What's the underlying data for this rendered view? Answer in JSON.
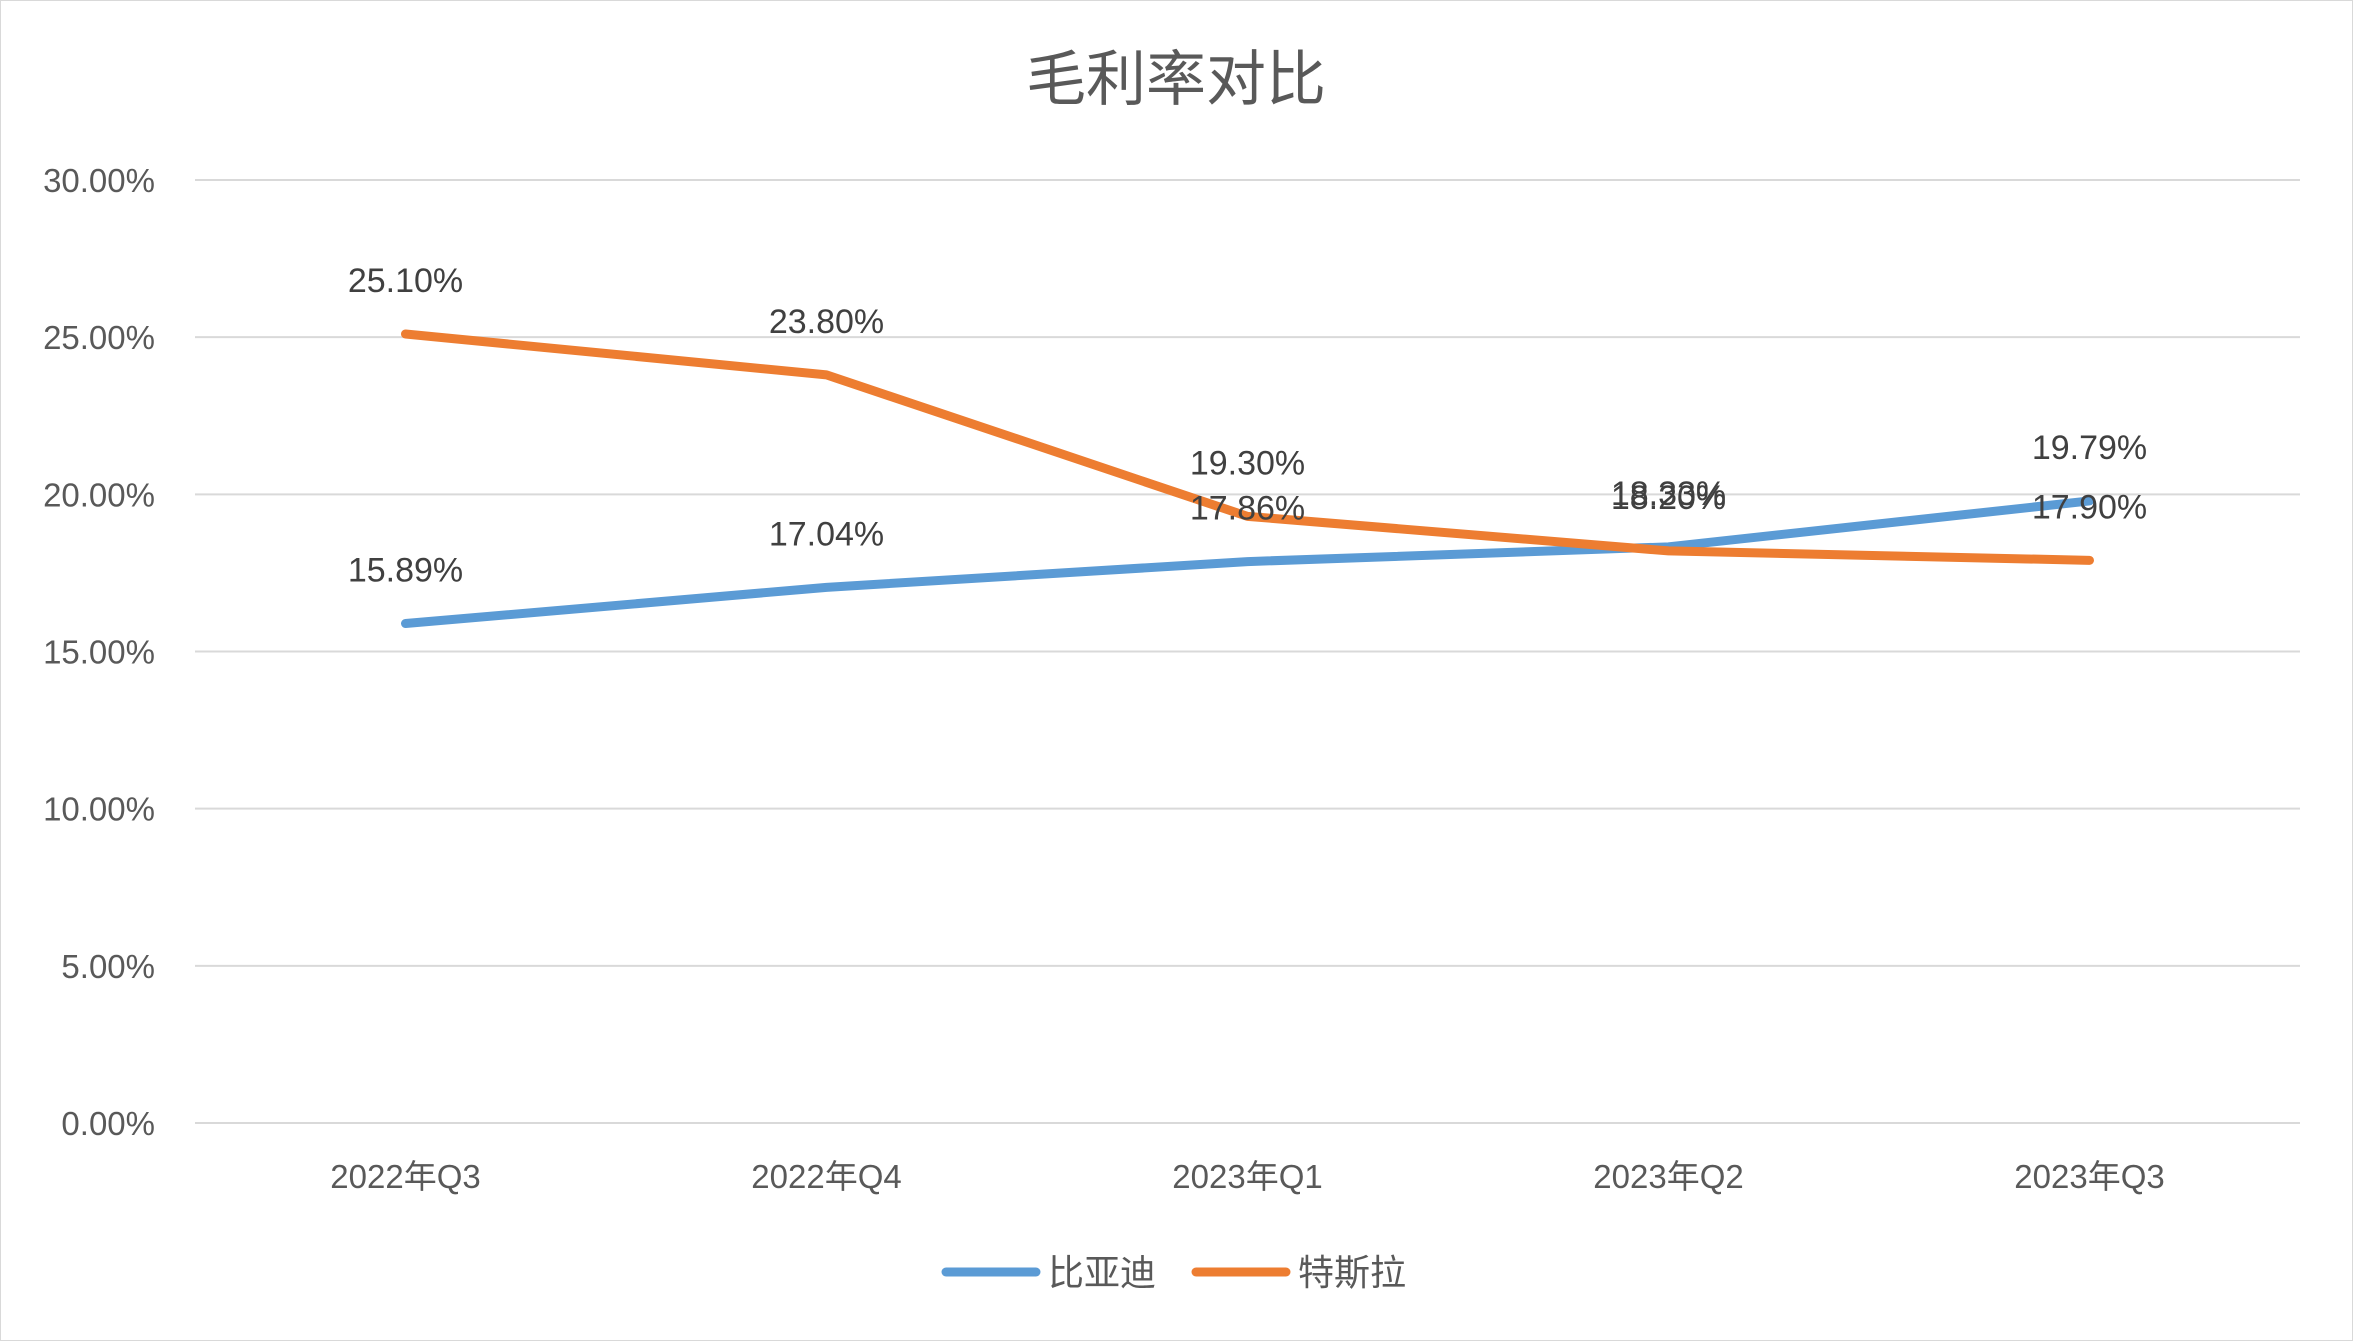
{
  "chart_data": {
    "type": "line",
    "title": "毛利率对比",
    "categories": [
      "2022年Q3",
      "2022年Q4",
      "2023年Q1",
      "2023年Q2",
      "2023年Q3"
    ],
    "series": [
      {
        "name": "比亚迪",
        "color": "#5B9BD5",
        "values": [
          15.89,
          17.04,
          17.86,
          18.33,
          19.79
        ],
        "labels": [
          "15.89%",
          "17.04%",
          "17.86%",
          "18.33%",
          "19.79%"
        ]
      },
      {
        "name": "特斯拉",
        "color": "#ED7D31",
        "values": [
          25.1,
          23.8,
          19.3,
          18.2,
          17.9
        ],
        "labels": [
          "25.10%",
          "23.80%",
          "19.30%",
          "18.20%",
          "17.90%"
        ]
      }
    ],
    "ylim": [
      0,
      30
    ],
    "yticks": [
      0,
      5,
      10,
      15,
      20,
      25,
      30
    ],
    "ytick_labels": [
      "0.00%",
      "5.00%",
      "10.00%",
      "15.00%",
      "20.00%",
      "25.00%",
      "30.00%"
    ],
    "xlabel": "",
    "ylabel": "",
    "grid": true,
    "legend_position": "bottom"
  }
}
